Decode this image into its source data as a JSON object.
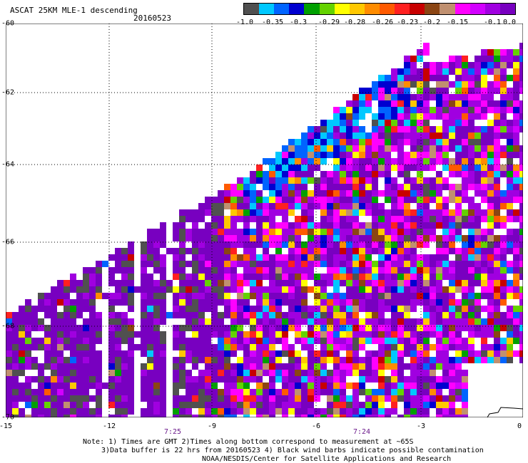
{
  "header": {
    "title": "ASCAT 25KM MLE-1 descending",
    "date": "20160523"
  },
  "colorbar": {
    "colors": [
      "#505050",
      "#00c8ff",
      "#0064ff",
      "#0000d0",
      "#00a000",
      "#64d200",
      "#ffff00",
      "#ffc800",
      "#ff8c00",
      "#ff5a00",
      "#ff2020",
      "#c80000",
      "#8b4513",
      "#c09070",
      "#ff00ff",
      "#d200ff",
      "#a000e0",
      "#7800c0"
    ],
    "labels": [
      "-1.0",
      "-0.35",
      "-0.3",
      "-0.29",
      "-0.28",
      "-0.26",
      "-0.23",
      "-0.2",
      "-0.15",
      "-0.1",
      "0.0"
    ]
  },
  "map": {
    "lat_labels": [
      "-60",
      "-62",
      "-64",
      "-66",
      "-68",
      "-70"
    ],
    "lon_labels": [
      "-15",
      "-12",
      "-9",
      "-6",
      "-3",
      "0"
    ],
    "time_labels": [
      "7:25",
      "7:24"
    ]
  },
  "notes": {
    "line1": "Note: 1) Times are GMT 2)Times along bottom correspond to measurement at ~65S",
    "line2": "3)Data buffer is 22 hrs from 20160523 4) Black wind barbs indicate possible contamination",
    "line3": "NOAA/NESDIS/Center for Satellite Applications and Research"
  }
}
